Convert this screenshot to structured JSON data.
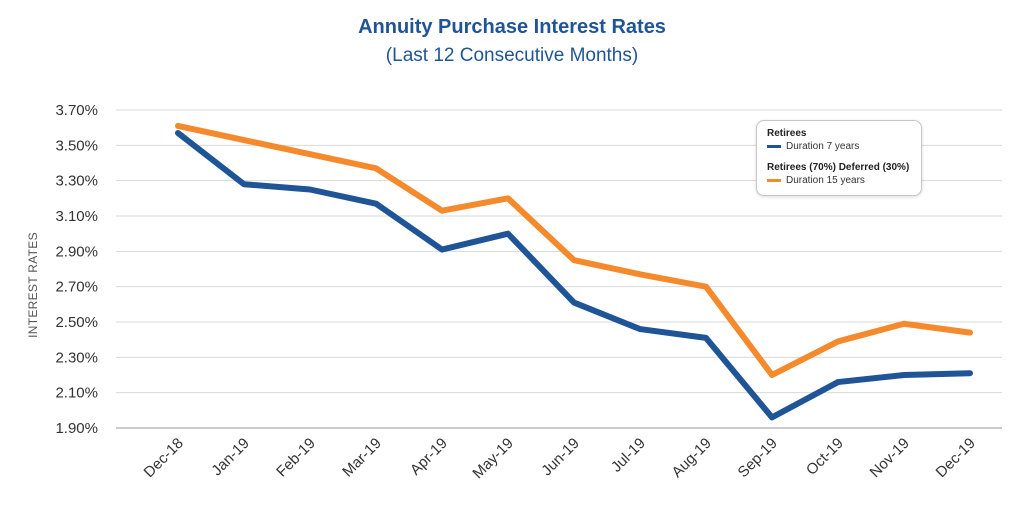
{
  "chart_data": {
    "type": "line",
    "title": "Annuity Purchase Interest Rates",
    "subtitle": "(Last 12 Consecutive Months)",
    "xlabel": "",
    "ylabel": "INTEREST RATES",
    "categories": [
      "Dec-18",
      "Jan-19",
      "Feb-19",
      "Mar-19",
      "Apr-19",
      "May-19",
      "Jun-19",
      "Jul-19",
      "Aug-19",
      "Sep-19",
      "Oct-19",
      "Nov-19",
      "Dec-19"
    ],
    "ylim": [
      1.9,
      3.7
    ],
    "yticks": [
      "3.70%",
      "3.50%",
      "3.30%",
      "3.10%",
      "2.90%",
      "2.70%",
      "2.50%",
      "2.30%",
      "2.10%",
      "1.90%"
    ],
    "ytick_values": [
      3.7,
      3.5,
      3.3,
      3.1,
      2.9,
      2.7,
      2.5,
      2.3,
      2.1,
      1.9
    ],
    "grid": true,
    "legend_position": "top-right",
    "series": [
      {
        "name": "Retirees",
        "detail": "Duration 7 years",
        "color": "#1f5597",
        "values": [
          3.57,
          3.28,
          3.25,
          3.17,
          2.91,
          3.0,
          2.61,
          2.46,
          2.41,
          1.96,
          2.16,
          2.2,
          2.21
        ]
      },
      {
        "name": "Retirees (70%) Deferred (30%)",
        "detail": "Duration 15 years",
        "color": "#f58a2c",
        "values": [
          3.61,
          3.53,
          3.45,
          3.37,
          3.13,
          3.2,
          2.85,
          2.77,
          2.7,
          2.2,
          2.39,
          2.49,
          2.44
        ]
      }
    ]
  }
}
